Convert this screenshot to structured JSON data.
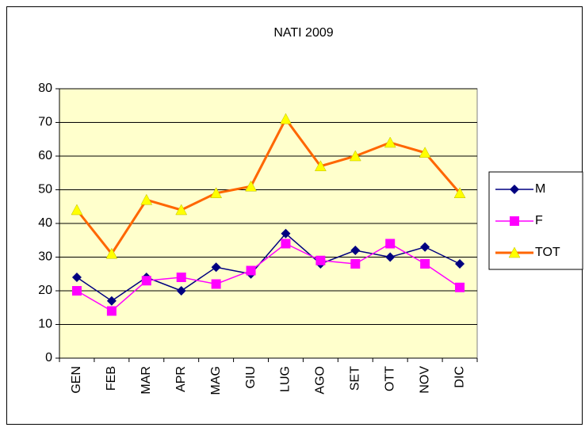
{
  "chart_data": {
    "type": "line",
    "title": "NATI 2009",
    "categories": [
      "GEN",
      "FEB",
      "MAR",
      "APR",
      "MAG",
      "GIU",
      "LUG",
      "AGO",
      "SET",
      "OTT",
      "NOV",
      "DIC"
    ],
    "series": [
      {
        "name": "M",
        "color": "#000080",
        "marker": "diamond",
        "marker_color": "#000080",
        "values": [
          24,
          17,
          24,
          20,
          27,
          25,
          37,
          28,
          32,
          30,
          33,
          28
        ]
      },
      {
        "name": "F",
        "color": "#ff00ff",
        "marker": "square",
        "marker_color": "#ff00ff",
        "values": [
          20,
          14,
          23,
          24,
          22,
          26,
          34,
          29,
          28,
          34,
          28,
          21
        ]
      },
      {
        "name": "TOT",
        "color": "#ff6600",
        "marker": "triangle",
        "marker_color": "#ffff00",
        "values": [
          44,
          31,
          47,
          44,
          49,
          51,
          71,
          57,
          60,
          64,
          61,
          49
        ]
      }
    ],
    "ylim": [
      0,
      80
    ],
    "yticks": [
      0,
      10,
      20,
      30,
      40,
      50,
      60,
      70,
      80
    ],
    "grid": true,
    "plot_background": "#ffffcc",
    "legend": "right"
  }
}
